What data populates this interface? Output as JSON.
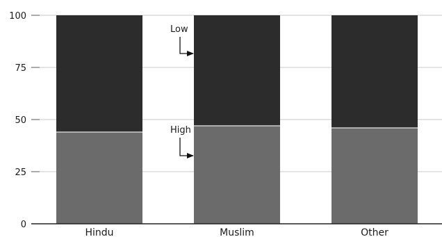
{
  "chart_data": {
    "type": "bar",
    "stacked": true,
    "categories": [
      "Hindu",
      "Muslim",
      "Other"
    ],
    "series": [
      {
        "name": "High",
        "values": [
          44,
          47,
          46
        ],
        "color": "#6b6b6b"
      },
      {
        "name": "Low",
        "values": [
          56,
          53,
          54
        ],
        "color": "#2c2c2c"
      }
    ],
    "ylim": [
      0,
      100
    ],
    "yticks": [
      "0",
      "25",
      "50",
      "75",
      "100"
    ],
    "grid": true,
    "legend": "inline annotations with arrows on middle bar",
    "annotations": [
      {
        "label": "Low",
        "series": "Low",
        "category": "Muslim"
      },
      {
        "label": "High",
        "series": "High",
        "category": "Muslim"
      }
    ]
  }
}
